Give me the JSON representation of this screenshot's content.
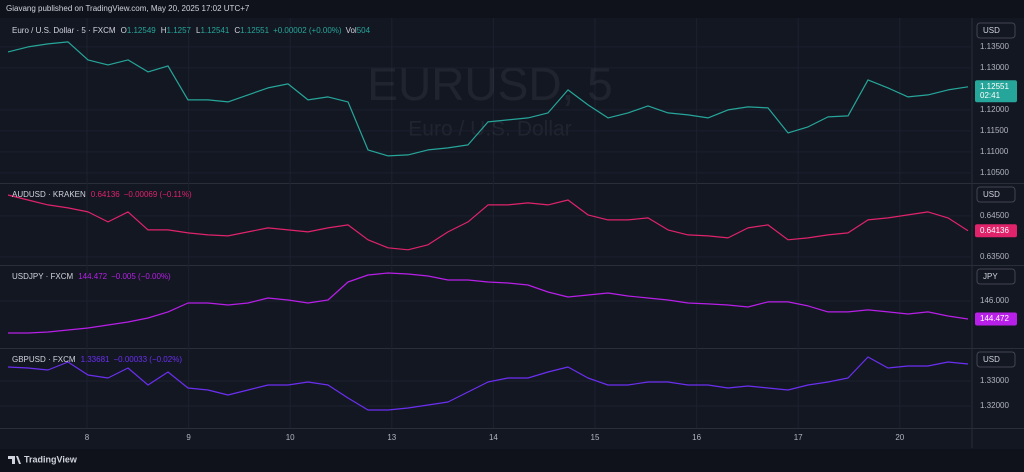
{
  "header": "Giavang published on TradingView.com, May 20, 2025 17:02 UTC+7",
  "time_axis": [
    "8",
    "9",
    "10",
    "13",
    "14",
    "15",
    "16",
    "17",
    "20"
  ],
  "footer": "TradingView",
  "chart_data": [
    {
      "type": "line",
      "title": "Euro / U.S. Dollar · 5 · FXCM",
      "ohlc": [
        {
          "label": "O",
          "value": 1.12549
        },
        {
          "label": "H",
          "value": 1.1257
        },
        {
          "label": "L",
          "value": 1.12541
        },
        {
          "label": "C",
          "value": 1.12551
        }
      ],
      "change": "+0.00002 (+0.00%)",
      "volume_label": "Vol",
      "volume": 504,
      "watermark": "EURUSD, 5",
      "watermark_subtitle": "Euro / U.S. Dollar",
      "currency": "USD",
      "countdown": "02:41",
      "color": "#26a69a",
      "values": [
        1.13381,
        1.135,
        1.13571,
        1.13619,
        1.1319,
        1.13071,
        1.1319,
        1.12905,
        1.13048,
        1.12238,
        1.12238,
        1.1219,
        1.12357,
        1.12524,
        1.12619,
        1.12238,
        1.1231,
        1.1219,
        1.11048,
        1.10905,
        1.10929,
        1.11048,
        1.11095,
        1.11167,
        1.11714,
        1.11762,
        1.1181,
        1.11929,
        1.12476,
        1.12119,
        1.1181,
        1.11929,
        1.12095,
        1.11929,
        1.11881,
        1.1181,
        1.12,
        1.12071,
        1.12048,
        1.11452,
        1.11595,
        1.11833,
        1.11857,
        1.12714,
        1.12524,
        1.1231,
        1.12357,
        1.12476,
        1.12551
      ],
      "ylim": [
        1.1026,
        1.1414
      ],
      "yticks": [
        {
          "value": 1.135,
          "label": "1.13500"
        },
        {
          "value": 1.13,
          "label": "1.13000"
        },
        {
          "value": 1.12,
          "label": "1.12000"
        },
        {
          "value": 1.115,
          "label": "1.11500"
        },
        {
          "value": 1.11,
          "label": "1.11000"
        },
        {
          "value": 1.105,
          "label": "1.10500"
        }
      ],
      "grid": true
    },
    {
      "type": "line",
      "title": "AUDUSD · KRAKEN",
      "change": "−0.00069 (−0.11%)",
      "currency": "USD",
      "color": "#e0236b",
      "values": [
        0.65012,
        0.6489,
        0.64768,
        0.64695,
        0.64598,
        0.64354,
        0.64598,
        0.64159,
        0.64159,
        0.64085,
        0.64037,
        0.64012,
        0.6411,
        0.64207,
        0.64159,
        0.6411,
        0.64207,
        0.6428,
        0.63915,
        0.6372,
        0.63671,
        0.63793,
        0.6411,
        0.64354,
        0.64768,
        0.64768,
        0.64817,
        0.64768,
        0.6489,
        0.64524,
        0.64402,
        0.64402,
        0.64451,
        0.64159,
        0.64037,
        0.64012,
        0.63963,
        0.64207,
        0.6428,
        0.63915,
        0.63963,
        0.64037,
        0.64085,
        0.64402,
        0.64451,
        0.64524,
        0.64598,
        0.64451,
        0.64136
      ],
      "ylim": [
        0.633,
        0.6528
      ],
      "yticks": [
        {
          "value": 0.645,
          "label": "0.64500"
        },
        {
          "value": 0.635,
          "label": "0.63500"
        }
      ],
      "grid": true
    },
    {
      "type": "line",
      "title": "USDJPY · FXCM",
      "change": "−0.005 (−0.00%)",
      "currency": "JPY",
      "color": "#b81fe8",
      "values": [
        143.28,
        143.28,
        143.37,
        143.54,
        143.71,
        143.96,
        144.22,
        144.56,
        145.07,
        145.83,
        145.83,
        145.66,
        145.83,
        146.25,
        146.08,
        145.83,
        146.08,
        147.61,
        148.21,
        148.38,
        148.29,
        148.12,
        147.78,
        147.78,
        147.61,
        147.53,
        147.36,
        146.76,
        146.34,
        146.51,
        146.68,
        146.42,
        146.25,
        146.08,
        145.83,
        145.75,
        145.66,
        145.49,
        145.92,
        145.92,
        145.58,
        145.07,
        145.07,
        145.24,
        145.07,
        144.9,
        145.07,
        144.73,
        144.472
      ],
      "ylim": [
        142.01,
        148.97
      ],
      "yticks": [
        {
          "value": 146,
          "label": "146.000"
        }
      ],
      "grid": true
    },
    {
      "type": "line",
      "title": "GBPUSD · FXCM",
      "change": "−0.00033 (−0.02%)",
      "currency": "USD",
      "color": "#6b2ff2",
      "values": [
        1.3356,
        1.3352,
        1.3344,
        1.3376,
        1.3324,
        1.3312,
        1.3352,
        1.3284,
        1.3336,
        1.3272,
        1.3264,
        1.3244,
        1.3264,
        1.3284,
        1.3284,
        1.3296,
        1.3284,
        1.3232,
        1.3184,
        1.3184,
        1.3192,
        1.3204,
        1.3216,
        1.3256,
        1.3296,
        1.3312,
        1.3312,
        1.3336,
        1.3356,
        1.3312,
        1.3284,
        1.3284,
        1.3296,
        1.3296,
        1.3284,
        1.3284,
        1.3272,
        1.328,
        1.3272,
        1.3264,
        1.3284,
        1.3296,
        1.3312,
        1.3396,
        1.3352,
        1.336,
        1.336,
        1.3376,
        1.33681
      ],
      "ylim": [
        1.3112,
        1.3428
      ],
      "yticks": [
        {
          "value": 1.33,
          "label": "1.33000"
        },
        {
          "value": 1.32,
          "label": "1.32000"
        }
      ],
      "grid": true
    }
  ]
}
